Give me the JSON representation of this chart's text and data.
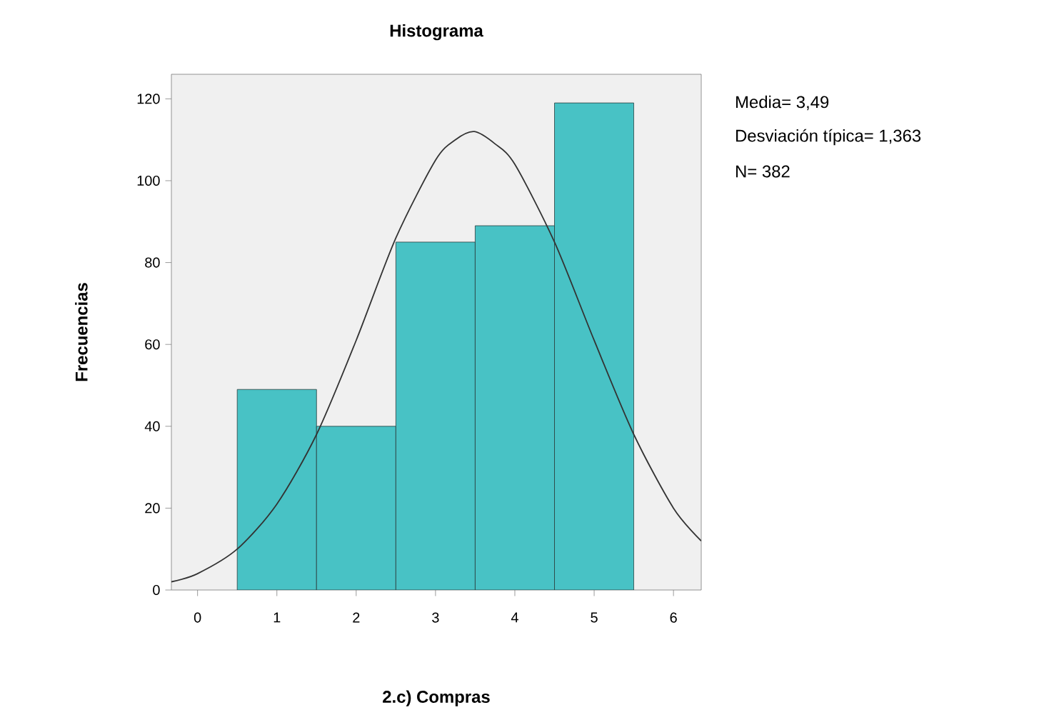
{
  "chart_data": {
    "type": "histogram",
    "title": "Histograma",
    "xlabel": "2.c) Compras",
    "ylabel": "Frecuencias",
    "bins": [
      0.5,
      1.5,
      2.5,
      3.5,
      4.5,
      5.5
    ],
    "series": [
      {
        "color": "#48c2c5",
        "values": [
          49,
          40,
          85,
          89,
          119
        ]
      },
      {
        "type": "line",
        "color": "#333333",
        "x": [
          -0.33,
          0,
          0.5,
          1,
          1.5,
          2,
          2.5,
          3,
          3.25,
          3.49,
          3.75,
          4,
          4.5,
          5,
          5.5,
          6,
          6.35
        ],
        "values": [
          2,
          4,
          10,
          21,
          38,
          61,
          86,
          105,
          110,
          112,
          109,
          104,
          85,
          61,
          38,
          20,
          12
        ]
      }
    ],
    "xlim": [
      -0.33,
      6.35
    ],
    "ylim": [
      0,
      126
    ],
    "xticks": [
      0,
      1,
      2,
      3,
      4,
      5,
      6
    ],
    "yticks": [
      0,
      20,
      40,
      60,
      80,
      100,
      120
    ],
    "marker": "none",
    "line_style": "solid",
    "grid": false,
    "annotations": [
      "Media= 3,49",
      "Desviación típica= 1,363",
      "N= 382"
    ]
  }
}
